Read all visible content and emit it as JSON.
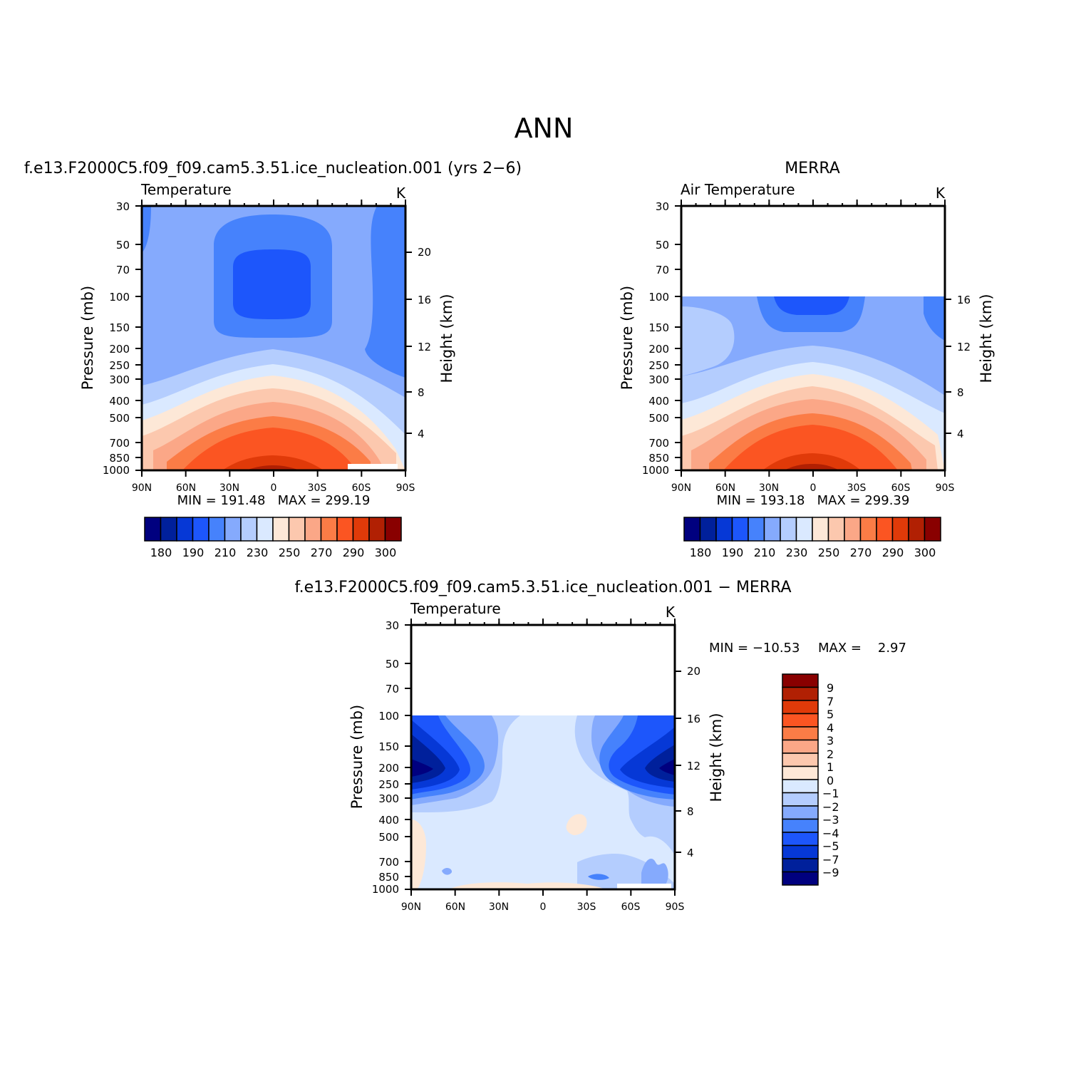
{
  "figure": {
    "title": "ANN"
  },
  "colors": {
    "abs_levels": [
      "#00007f",
      "#00209b",
      "#0638d6",
      "#1d56fb",
      "#4682fc",
      "#85aafd",
      "#b4cdfe",
      "#dae9ff",
      "#fde8d7",
      "#fcc8ae",
      "#fba787",
      "#fb7c46",
      "#fb5522",
      "#e03a09",
      "#b12003",
      "#890000"
    ],
    "diff_levels": [
      "#00007f",
      "#00209b",
      "#0638d6",
      "#1d56fb",
      "#4682fc",
      "#85aafd",
      "#b4cdfe",
      "#dae9ff",
      "#fde8d7",
      "#fcc8ae",
      "#fba787",
      "#fb7c46",
      "#fb5522",
      "#e03a09",
      "#b12003",
      "#890000"
    ]
  },
  "axes": {
    "pressure_ticks": [
      "30",
      "50",
      "70",
      "100",
      "150",
      "200",
      "250",
      "300",
      "400",
      "500",
      "700",
      "850",
      "1000"
    ],
    "lat_ticks": [
      "90N",
      "60N",
      "30N",
      "0",
      "30S",
      "60S",
      "90S"
    ],
    "pressure_label": "Pressure (mb)",
    "height_label": "Height (km)"
  },
  "panels": [
    {
      "title": "f.e13.F2000C5.f09_f09.cam5.3.51.ice_nucleation.001 (yrs 2−6)",
      "variable": "Temperature",
      "units": "K",
      "height_ticks": [
        "20",
        "16",
        "12",
        "8",
        "4"
      ],
      "minmax": "MIN = 191.48   MAX = 299.19",
      "colorbar_labels": [
        "180",
        "190",
        "210",
        "230",
        "250",
        "270",
        "290",
        "300"
      ]
    },
    {
      "title": "MERRA",
      "variable": "Air Temperature",
      "units": "K",
      "height_ticks": [
        "16",
        "12",
        "8",
        "4"
      ],
      "minmax": "MIN = 193.18   MAX = 299.39",
      "colorbar_labels": [
        "180",
        "190",
        "210",
        "230",
        "250",
        "270",
        "290",
        "300"
      ]
    },
    {
      "title": "f.e13.F2000C5.f09_f09.cam5.3.51.ice_nucleation.001 − MERRA",
      "variable": "Temperature",
      "units": "K",
      "height_ticks": [
        "20",
        "16",
        "12",
        "8",
        "4"
      ],
      "minmax_min": "MIN = −10.53",
      "minmax_max": "MAX =    2.97",
      "colorbar_labels": [
        "9",
        "7",
        "5",
        "4",
        "3",
        "2",
        "1",
        "0",
        "−1",
        "−2",
        "−3",
        "−4",
        "−5",
        "−7",
        "−9"
      ]
    }
  ],
  "chart_data": [
    {
      "type": "heatmap",
      "title": "f.e13.F2000C5.f09_f09.cam5.3.51.ice_nucleation.001 (yrs 2−6)",
      "variable": "Temperature",
      "units": "K",
      "x": "latitude 90N to 90S",
      "y": "pressure 30 to 1000 mb (log scale)",
      "min": 191.48,
      "max": 299.19,
      "contour_levels": [
        180,
        185,
        190,
        200,
        210,
        220,
        230,
        240,
        250,
        260,
        270,
        280,
        290,
        295,
        300
      ]
    },
    {
      "type": "heatmap",
      "title": "MERRA",
      "variable": "Air Temperature",
      "units": "K",
      "x": "latitude 90N to 90S",
      "y": "pressure 100 to 1000 mb (log scale); no data above 100 mb",
      "min": 193.18,
      "max": 299.39,
      "contour_levels": [
        180,
        185,
        190,
        200,
        210,
        220,
        230,
        240,
        250,
        260,
        270,
        280,
        290,
        295,
        300
      ]
    },
    {
      "type": "heatmap",
      "title": "f.e13.F2000C5.f09_f09.cam5.3.51.ice_nucleation.001 − MERRA",
      "variable": "Temperature",
      "units": "K",
      "x": "latitude 90N to 90S",
      "y": "pressure 100 to 1000 mb (log scale); no data above 100 mb",
      "min": -10.53,
      "max": 2.97,
      "contour_levels": [
        -9,
        -7,
        -5,
        -4,
        -3,
        -2,
        -1,
        0,
        1,
        2,
        3,
        4,
        5,
        7,
        9
      ]
    }
  ]
}
